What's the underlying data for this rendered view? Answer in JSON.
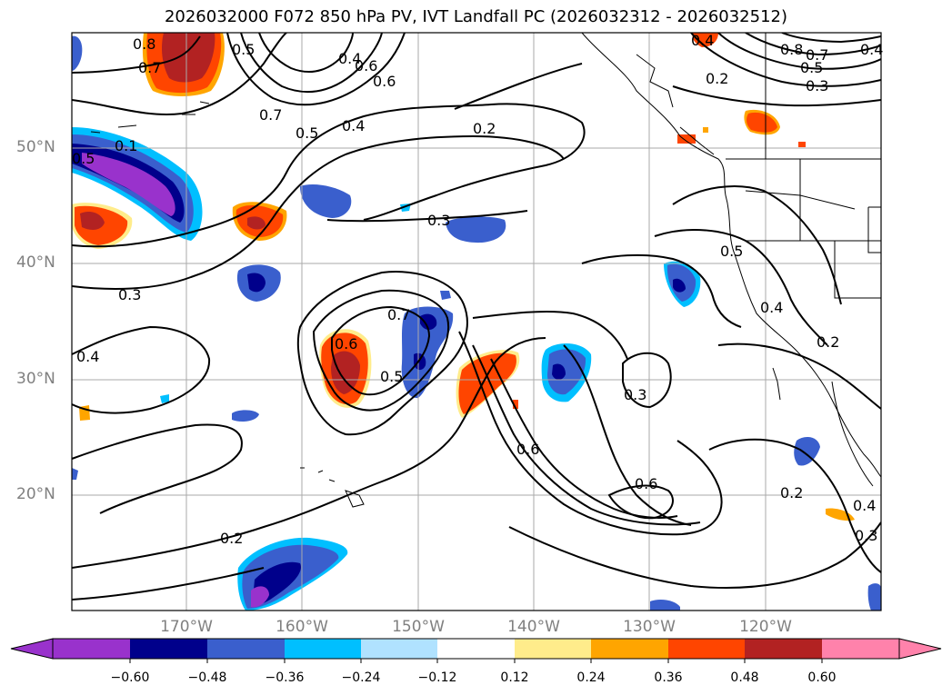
{
  "title": "2026032000 F072 850 hPa PV, IVT Landfall PC (2026032312 - 2026032512)",
  "map": {
    "lat_labels": [
      "50°N",
      "40°N",
      "30°N",
      "20°N"
    ],
    "lon_labels": [
      "170°W",
      "160°W",
      "150°W",
      "140°W",
      "130°W",
      "120°W"
    ],
    "contour_labels": [
      "0.8",
      "0.7",
      "0.5",
      "0.7",
      "0.5",
      "0.4",
      "0.6",
      "0.4",
      "0.2",
      "0.8",
      "0.7",
      "0.5",
      "0.3",
      "0.2",
      "0.4",
      "0.1",
      "0.5",
      "0.3",
      "0.3",
      "0.4",
      "0.6",
      "0.7",
      "0.5",
      "0.5",
      "0.4",
      "0.2",
      "0.3",
      "0.6",
      "0.6",
      "0.2",
      "0.2",
      "0.4",
      "0.3",
      "0.4",
      "0.6"
    ]
  },
  "colorbar": {
    "ticks": [
      "−0.60",
      "−0.48",
      "−0.36",
      "−0.24",
      "−0.12",
      "0.12",
      "0.24",
      "0.36",
      "0.48",
      "0.60"
    ],
    "colors": [
      "#9932cc",
      "#00008b",
      "#3a5fcd",
      "#00bfff",
      "#b0e2ff",
      "#ffffff",
      "#ffec8b",
      "#ffa500",
      "#ff4500",
      "#b22222",
      "#ff82ab"
    ]
  }
}
